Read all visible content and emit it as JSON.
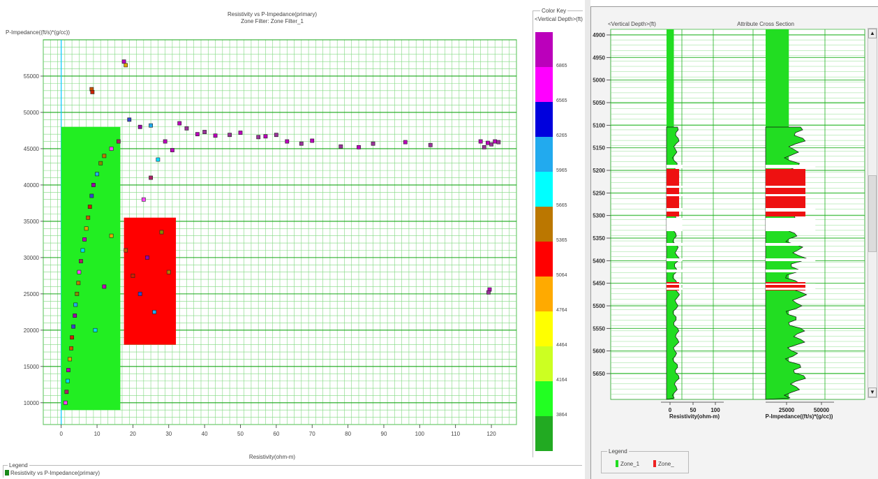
{
  "window": {
    "accent": "#00cc00"
  },
  "scatter": {
    "title": "Resistivity vs P-Impedance(primary)",
    "subtitle": "Zone Filter: Zone Filter_1",
    "ylabel": "P-Impedance((ft/s)*(g/cc))",
    "xlabel": "Resistivity(ohm-m)",
    "legend_title": "Legend",
    "legend_item": "Resistivity vs P-Impedance(primary)",
    "legend_swatch_color": "#1a8a1a"
  },
  "color_key": {
    "title": "Color Key",
    "subtitle": "<Vertical Depth>(ft)",
    "labels": [
      "6865",
      "6565",
      "6265",
      "5965",
      "5665",
      "5365",
      "5064",
      "4764",
      "4464",
      "4164",
      "3864"
    ],
    "colors": [
      "#22aa22",
      "#22ff22",
      "#ccff22",
      "#ffff00",
      "#ffaa00",
      "#ff0000",
      "#bb7700",
      "#00ffff",
      "#22aaee",
      "#0000dd",
      "#ff00ff",
      "#bb00bb"
    ]
  },
  "cross_section": {
    "title": "Attribute Cross Section",
    "depth_label": "<Vertical Depth>(ft)",
    "depth_ticks": [
      "4900",
      "4950",
      "5000",
      "5050",
      "5100",
      "5150",
      "5200",
      "5250",
      "5300",
      "5350",
      "5400",
      "5450",
      "5500",
      "5550",
      "5600",
      "5650"
    ],
    "resistivity_label": "Resistivity(ohm-m)",
    "resistivity_ticks": [
      "0",
      "50",
      "100"
    ],
    "impedance_label": "P-Impedance((ft/s)*(g/cc))",
    "impedance_ticks": [
      "25000",
      "50000"
    ],
    "legend_title": "Legend",
    "legend_items": [
      {
        "label": "Zone_1",
        "color": "#22dd22"
      },
      {
        "label": "Zone_",
        "color": "#ee2222"
      }
    ],
    "scroll_up": "▲",
    "scroll_down": "▼"
  },
  "chart_data": {
    "type": "scatter",
    "title": "Resistivity vs P-Impedance(primary)",
    "subtitle": "Zone Filter: Zone Filter_1",
    "xlabel": "Resistivity(ohm-m)",
    "ylabel": "P-Impedance((ft/s)*(g/cc))",
    "xlim": [
      -5,
      127
    ],
    "ylim": [
      7000,
      60000
    ],
    "x_ticks": [
      0,
      10,
      20,
      30,
      40,
      50,
      60,
      70,
      80,
      90,
      100,
      110,
      120
    ],
    "y_ticks": [
      10000,
      15000,
      20000,
      25000,
      30000,
      35000,
      40000,
      45000,
      50000,
      55000
    ],
    "grid": true,
    "zones": [
      {
        "name": "Zone_1",
        "color": "#22ee22",
        "x_range": [
          0,
          16.5
        ],
        "y_range": [
          9000,
          48000
        ]
      },
      {
        "name": "Zone",
        "color": "#ff0000",
        "x_range": [
          17.5,
          32
        ],
        "y_range": [
          18000,
          35500
        ]
      }
    ],
    "series": [
      {
        "values": [
          [
            17.5,
            57000
          ],
          [
            18,
            56500
          ],
          [
            8.5,
            53200
          ],
          [
            8.7,
            52800
          ],
          [
            19,
            49000
          ],
          [
            22,
            48000
          ],
          [
            25,
            48200
          ],
          [
            33,
            48500
          ],
          [
            35,
            47800
          ],
          [
            38,
            47000
          ],
          [
            40,
            47300
          ],
          [
            43,
            46800
          ],
          [
            47,
            46900
          ],
          [
            50,
            47200
          ],
          [
            55,
            46600
          ],
          [
            57,
            46700
          ],
          [
            60,
            46900
          ],
          [
            63,
            46000
          ],
          [
            67,
            45700
          ],
          [
            70,
            46100
          ],
          [
            78,
            45300
          ],
          [
            83,
            45200
          ],
          [
            87,
            45700
          ],
          [
            96,
            45900
          ],
          [
            103,
            45500
          ],
          [
            117,
            46000
          ],
          [
            118,
            45200
          ],
          [
            119,
            45800
          ],
          [
            120,
            45600
          ],
          [
            121,
            46000
          ],
          [
            122,
            45900
          ],
          [
            119.5,
            25600
          ],
          [
            119.2,
            25200
          ],
          [
            1.2,
            10000
          ],
          [
            1.5,
            11500
          ],
          [
            1.8,
            13000
          ],
          [
            2.0,
            14500
          ],
          [
            2.4,
            16000
          ],
          [
            2.8,
            17500
          ],
          [
            3.0,
            19000
          ],
          [
            3.4,
            20500
          ],
          [
            3.8,
            22000
          ],
          [
            4.0,
            23500
          ],
          [
            4.4,
            25000
          ],
          [
            4.8,
            26500
          ],
          [
            5.0,
            28000
          ],
          [
            5.5,
            29500
          ],
          [
            6.0,
            31000
          ],
          [
            6.5,
            32500
          ],
          [
            7.0,
            34000
          ],
          [
            7.5,
            35500
          ],
          [
            8.0,
            37000
          ],
          [
            8.5,
            38500
          ],
          [
            9.0,
            40000
          ],
          [
            10,
            41500
          ],
          [
            11,
            43000
          ],
          [
            12,
            44000
          ],
          [
            14,
            45000
          ],
          [
            16,
            46000
          ],
          [
            9.5,
            20000
          ],
          [
            12,
            26000
          ],
          [
            14,
            33000
          ],
          [
            18,
            31000
          ],
          [
            20,
            27500
          ],
          [
            22,
            25000
          ],
          [
            24,
            30000
          ],
          [
            26,
            22500
          ],
          [
            28,
            33500
          ],
          [
            30,
            28000
          ],
          [
            23,
            38000
          ],
          [
            25,
            41000
          ],
          [
            27,
            43500
          ],
          [
            29,
            46000
          ],
          [
            31,
            44800
          ]
        ]
      }
    ]
  }
}
